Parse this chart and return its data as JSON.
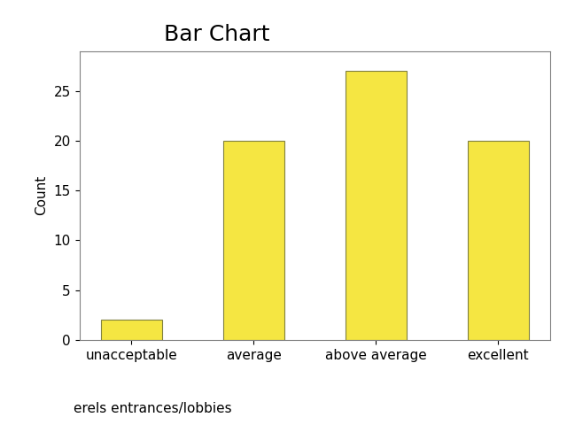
{
  "title": "Bar Chart",
  "categories": [
    "unacceptable",
    "average",
    "above average",
    "excellent"
  ],
  "values": [
    2,
    20,
    27,
    20
  ],
  "bar_color": "#F5E642",
  "bar_edgecolor": "#808040",
  "ylabel": "Count",
  "xlabel": "erels entrances/lobbies",
  "ylim": [
    0,
    29
  ],
  "yticks": [
    0,
    5,
    10,
    15,
    20,
    25
  ],
  "title_fontsize": 18,
  "label_fontsize": 11,
  "tick_fontsize": 11,
  "bar_width": 0.5
}
